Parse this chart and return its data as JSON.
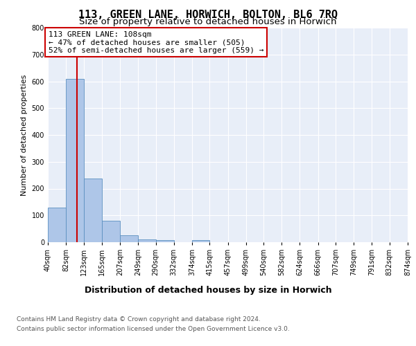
{
  "title": "113, GREEN LANE, HORWICH, BOLTON, BL6 7RQ",
  "subtitle": "Size of property relative to detached houses in Horwich",
  "xlabel": "Distribution of detached houses by size in Horwich",
  "ylabel": "Number of detached properties",
  "bin_edges": [
    40,
    82,
    123,
    165,
    207,
    249,
    290,
    332,
    374,
    415,
    457,
    499,
    540,
    582,
    624,
    666,
    707,
    749,
    791,
    832,
    874
  ],
  "bar_heights": [
    130,
    608,
    237,
    80,
    25,
    10,
    8,
    0,
    8,
    0,
    0,
    0,
    0,
    0,
    0,
    0,
    0,
    0,
    0,
    0
  ],
  "bar_color": "#aec6e8",
  "bar_edge_color": "#5a8fc0",
  "vline_x": 108,
  "vline_color": "#cc0000",
  "annotation_text": "113 GREEN LANE: 108sqm\n← 47% of detached houses are smaller (505)\n52% of semi-detached houses are larger (559) →",
  "annotation_box_color": "#ffffff",
  "annotation_box_edge_color": "#cc0000",
  "ylim": [
    0,
    800
  ],
  "yticks": [
    0,
    100,
    200,
    300,
    400,
    500,
    600,
    700,
    800
  ],
  "footer_line1": "Contains HM Land Registry data © Crown copyright and database right 2024.",
  "footer_line2": "Contains public sector information licensed under the Open Government Licence v3.0.",
  "plot_bg_color": "#e8eef8",
  "title_fontsize": 11,
  "subtitle_fontsize": 9.5,
  "annotation_fontsize": 8,
  "tick_fontsize": 7,
  "footer_fontsize": 6.5,
  "ylabel_fontsize": 8,
  "xlabel_fontsize": 9
}
